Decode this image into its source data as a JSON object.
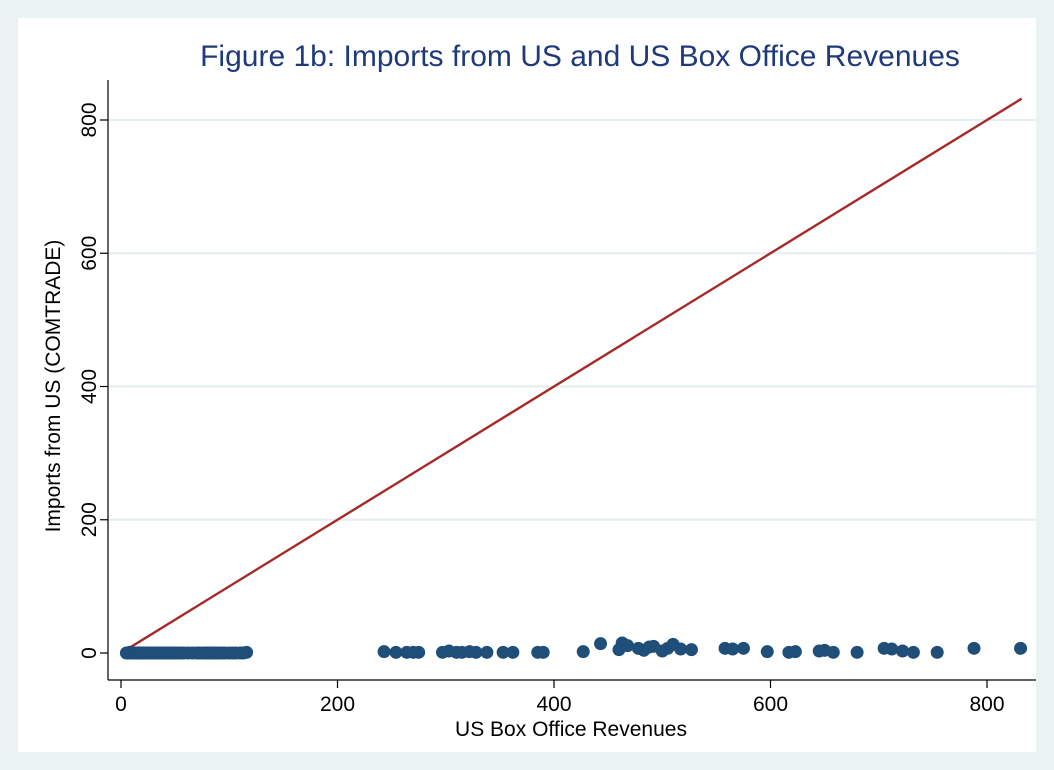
{
  "chart_data": {
    "type": "scatter",
    "title": "Figure 1b: Imports from US and US Box Office Revenues",
    "xlabel": "US Box Office Revenues",
    "ylabel": "Imports from US (COMTRADE)",
    "xlim": [
      0,
      830
    ],
    "ylim": [
      0,
      830
    ],
    "xticks": [
      0,
      200,
      400,
      600,
      800
    ],
    "yticks": [
      0,
      200,
      400,
      600,
      800
    ],
    "grid": "horizontal",
    "colors": {
      "points": "#1f4e79",
      "line": "#a52a2a",
      "title": "#1e3a7a",
      "grid": "#e4eeee"
    },
    "reference_line": {
      "from": [
        5,
        5
      ],
      "to": [
        832,
        832
      ]
    },
    "points": [
      [
        5,
        0
      ],
      [
        7,
        0
      ],
      [
        8,
        1
      ],
      [
        10,
        0
      ],
      [
        11,
        0
      ],
      [
        12,
        0
      ],
      [
        13,
        0
      ],
      [
        15,
        0
      ],
      [
        16,
        0
      ],
      [
        18,
        0
      ],
      [
        19,
        0
      ],
      [
        20,
        0
      ],
      [
        22,
        0
      ],
      [
        24,
        0
      ],
      [
        26,
        0
      ],
      [
        28,
        0
      ],
      [
        30,
        0
      ],
      [
        32,
        0
      ],
      [
        34,
        0
      ],
      [
        36,
        0
      ],
      [
        38,
        0
      ],
      [
        40,
        0
      ],
      [
        42,
        0
      ],
      [
        44,
        0
      ],
      [
        46,
        0
      ],
      [
        48,
        0
      ],
      [
        50,
        0
      ],
      [
        52,
        0
      ],
      [
        55,
        0
      ],
      [
        58,
        0
      ],
      [
        62,
        0
      ],
      [
        66,
        0
      ],
      [
        70,
        0
      ],
      [
        72,
        0
      ],
      [
        75,
        0
      ],
      [
        78,
        0
      ],
      [
        80,
        0
      ],
      [
        82,
        0
      ],
      [
        84,
        0
      ],
      [
        86,
        0
      ],
      [
        88,
        0
      ],
      [
        90,
        0
      ],
      [
        93,
        0
      ],
      [
        96,
        0
      ],
      [
        100,
        0
      ],
      [
        103,
        0
      ],
      [
        106,
        0
      ],
      [
        110,
        0
      ],
      [
        113,
        0
      ],
      [
        116,
        1
      ],
      [
        243,
        2
      ],
      [
        254,
        1
      ],
      [
        264,
        1
      ],
      [
        270,
        1
      ],
      [
        275,
        1
      ],
      [
        297,
        1
      ],
      [
        303,
        3
      ],
      [
        310,
        1
      ],
      [
        315,
        1
      ],
      [
        322,
        2
      ],
      [
        328,
        1
      ],
      [
        338,
        1
      ],
      [
        353,
        1
      ],
      [
        362,
        1
      ],
      [
        385,
        1
      ],
      [
        390,
        1
      ],
      [
        427,
        2
      ],
      [
        443,
        14
      ],
      [
        460,
        5
      ],
      [
        463,
        15
      ],
      [
        468,
        11
      ],
      [
        478,
        7
      ],
      [
        483,
        4
      ],
      [
        488,
        9
      ],
      [
        492,
        10
      ],
      [
        500,
        3
      ],
      [
        505,
        7
      ],
      [
        510,
        13
      ],
      [
        517,
        6
      ],
      [
        527,
        5
      ],
      [
        558,
        7
      ],
      [
        565,
        6
      ],
      [
        575,
        7
      ],
      [
        597,
        2
      ],
      [
        617,
        1
      ],
      [
        623,
        2
      ],
      [
        645,
        3
      ],
      [
        650,
        4
      ],
      [
        658,
        1
      ],
      [
        680,
        1
      ],
      [
        705,
        7
      ],
      [
        712,
        6
      ],
      [
        722,
        3
      ],
      [
        732,
        1
      ],
      [
        754,
        1
      ],
      [
        788,
        7
      ],
      [
        831,
        7
      ]
    ]
  }
}
